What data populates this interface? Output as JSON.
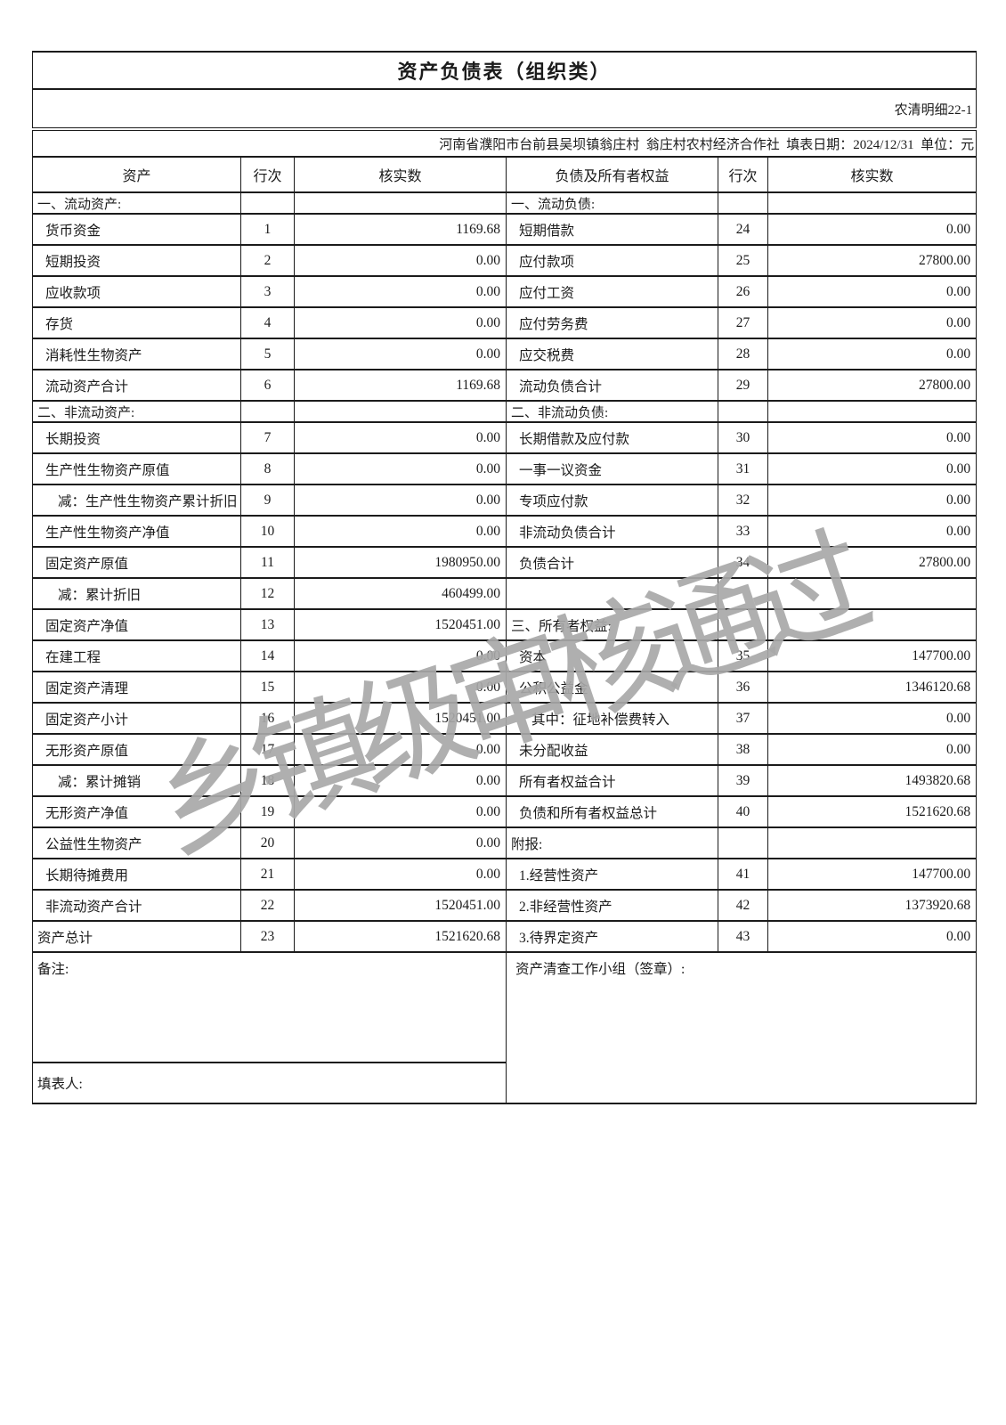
{
  "page": {
    "title": "资产负债表（组织类）",
    "doc_no": "农清明细22-1",
    "info_line": "河南省濮阳市台前县吴坝镇翁庄村  翁庄村农村经济合作社  填表日期：2024/12/31  单位：元",
    "watermark": "乡镇级审核通过"
  },
  "table": {
    "headers": [
      "资产",
      "行次",
      "核实数",
      "负债及所有者权益",
      "行次",
      "核实数"
    ],
    "rows": [
      {
        "type": "section",
        "l": "一、流动资产:",
        "li": 0,
        "ln": "",
        "lv": "",
        "r": "一、流动负债:",
        "ri": 0,
        "rn": "",
        "rv": ""
      },
      {
        "type": "data",
        "l": "货币资金",
        "li": 1,
        "ln": "1",
        "lv": "1169.68",
        "r": "短期借款",
        "ri": 1,
        "rn": "24",
        "rv": "0.00"
      },
      {
        "type": "data",
        "l": "短期投资",
        "li": 1,
        "ln": "2",
        "lv": "0.00",
        "r": "应付款项",
        "ri": 1,
        "rn": "25",
        "rv": "27800.00"
      },
      {
        "type": "data",
        "l": "应收款项",
        "li": 1,
        "ln": "3",
        "lv": "0.00",
        "r": "应付工资",
        "ri": 1,
        "rn": "26",
        "rv": "0.00"
      },
      {
        "type": "data",
        "l": "存货",
        "li": 1,
        "ln": "4",
        "lv": "0.00",
        "r": "应付劳务费",
        "ri": 1,
        "rn": "27",
        "rv": "0.00"
      },
      {
        "type": "data",
        "l": "消耗性生物资产",
        "li": 1,
        "ln": "5",
        "lv": "0.00",
        "r": "应交税费",
        "ri": 1,
        "rn": "28",
        "rv": "0.00"
      },
      {
        "type": "data",
        "l": "流动资产合计",
        "li": 1,
        "ln": "6",
        "lv": "1169.68",
        "r": "流动负债合计",
        "ri": 1,
        "rn": "29",
        "rv": "27800.00"
      },
      {
        "type": "section",
        "l": "二、非流动资产:",
        "li": 0,
        "ln": "",
        "lv": "",
        "r": "二、非流动负债:",
        "ri": 0,
        "rn": "",
        "rv": ""
      },
      {
        "type": "data",
        "l": "长期投资",
        "li": 1,
        "ln": "7",
        "lv": "0.00",
        "r": "长期借款及应付款",
        "ri": 1,
        "rn": "30",
        "rv": "0.00"
      },
      {
        "type": "data",
        "l": "生产性生物资产原值",
        "li": 1,
        "ln": "8",
        "lv": "0.00",
        "r": "一事一议资金",
        "ri": 1,
        "rn": "31",
        "rv": "0.00"
      },
      {
        "type": "data",
        "l": "减：生产性生物资产累计折旧",
        "li": 2,
        "ln": "9",
        "lv": "0.00",
        "r": "专项应付款",
        "ri": 1,
        "rn": "32",
        "rv": "0.00"
      },
      {
        "type": "data",
        "l": "生产性生物资产净值",
        "li": 1,
        "ln": "10",
        "lv": "0.00",
        "r": "非流动负债合计",
        "ri": 1,
        "rn": "33",
        "rv": "0.00"
      },
      {
        "type": "data",
        "l": "固定资产原值",
        "li": 1,
        "ln": "11",
        "lv": "1980950.00",
        "r": "负债合计",
        "ri": 1,
        "rn": "34",
        "rv": "27800.00"
      },
      {
        "type": "data",
        "l": "减：累计折旧",
        "li": 2,
        "ln": "12",
        "lv": "460499.00",
        "r": "",
        "ri": 0,
        "rn": "",
        "rv": ""
      },
      {
        "type": "data",
        "l": "固定资产净值",
        "li": 1,
        "ln": "13",
        "lv": "1520451.00",
        "r": "三、所有者权益:",
        "ri": 0,
        "rn": "",
        "rv": ""
      },
      {
        "type": "data",
        "l": "在建工程",
        "li": 1,
        "ln": "14",
        "lv": "0.00",
        "r": "资本",
        "ri": 1,
        "rn": "35",
        "rv": "147700.00"
      },
      {
        "type": "data",
        "l": "固定资产清理",
        "li": 1,
        "ln": "15",
        "lv": "0.00",
        "r": "公积公益金",
        "ri": 1,
        "rn": "36",
        "rv": "1346120.68"
      },
      {
        "type": "data",
        "l": "固定资产小计",
        "li": 1,
        "ln": "16",
        "lv": "1520451.00",
        "r": "其中：征地补偿费转入",
        "ri": 2,
        "rn": "37",
        "rv": "0.00"
      },
      {
        "type": "data",
        "l": "无形资产原值",
        "li": 1,
        "ln": "17",
        "lv": "0.00",
        "r": "未分配收益",
        "ri": 1,
        "rn": "38",
        "rv": "0.00"
      },
      {
        "type": "data",
        "l": "减：累计摊销",
        "li": 2,
        "ln": "18",
        "lv": "0.00",
        "r": "所有者权益合计",
        "ri": 1,
        "rn": "39",
        "rv": "1493820.68"
      },
      {
        "type": "data",
        "l": "无形资产净值",
        "li": 1,
        "ln": "19",
        "lv": "0.00",
        "r": "负债和所有者权益总计",
        "ri": 1,
        "rn": "40",
        "rv": "1521620.68"
      },
      {
        "type": "data",
        "l": "公益性生物资产",
        "li": 1,
        "ln": "20",
        "lv": "0.00",
        "r": "附报:",
        "ri": 0,
        "rn": "",
        "rv": ""
      },
      {
        "type": "data",
        "l": "长期待摊费用",
        "li": 1,
        "ln": "21",
        "lv": "0.00",
        "r": "1.经营性资产",
        "ri": 1,
        "rn": "41",
        "rv": "147700.00"
      },
      {
        "type": "data",
        "l": "非流动资产合计",
        "li": 1,
        "ln": "22",
        "lv": "1520451.00",
        "r": "2.非经营性资产",
        "ri": 1,
        "rn": "42",
        "rv": "1373920.68"
      },
      {
        "type": "data",
        "l": "资产总计",
        "li": 0,
        "ln": "23",
        "lv": "1521620.68",
        "r": "3.待界定资产",
        "ri": 1,
        "rn": "43",
        "rv": "0.00"
      }
    ]
  },
  "footer": {
    "remark_label": "备注:",
    "preparer_label": "填表人:",
    "signature_label": "资产清查工作小组（签章）:"
  }
}
